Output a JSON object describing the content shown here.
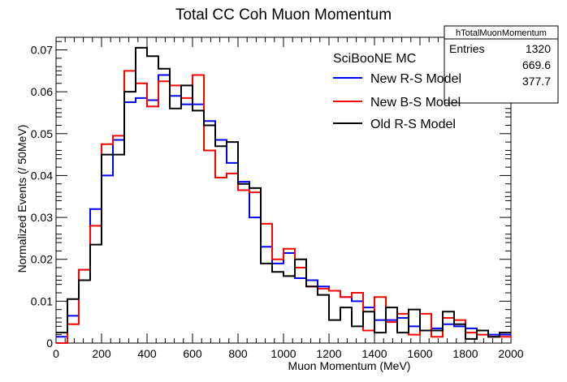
{
  "chart_data": {
    "type": "line",
    "title": "Total CC Coh Muon Momentum",
    "xlabel": "Muon Momentum (MeV)",
    "ylabel": "Normalized Events (/ 50MeV)",
    "xlim": [
      0,
      2000
    ],
    "ylim": [
      0,
      0.073
    ],
    "bin_width": 50,
    "bin_edges_start": 0,
    "x_ticks": [
      0,
      200,
      400,
      600,
      800,
      1000,
      1200,
      1400,
      1600,
      1800,
      2000
    ],
    "x_tick_labels": [
      "0",
      "200",
      "400",
      "600",
      "800",
      "1000",
      "1200",
      "1400",
      "1600",
      "1800",
      "2000"
    ],
    "y_ticks": [
      0,
      0.01,
      0.02,
      0.03,
      0.04,
      0.05,
      0.06,
      0.07
    ],
    "y_tick_labels": [
      "0",
      "0.01",
      "0.02",
      "0.03",
      "0.04",
      "0.05",
      "0.06",
      "0.07"
    ],
    "legend_header": "SciBooNE MC",
    "legend_position": "top-right",
    "grid": false,
    "series": [
      {
        "name": "New R-S Model",
        "color": "#0000ff",
        "values": [
          0.0015,
          0.0065,
          0.0175,
          0.032,
          0.04,
          0.0485,
          0.0575,
          0.0585,
          0.058,
          0.064,
          0.059,
          0.057,
          0.057,
          0.053,
          0.0485,
          0.043,
          0.0385,
          0.03,
          0.023,
          0.019,
          0.0215,
          0.0155,
          0.015,
          0.0135,
          0.0125,
          0.011,
          0.01,
          0.0085,
          0.0055,
          0.0055,
          0.006,
          0.004,
          0.003,
          0.0035,
          0.0045,
          0.004,
          0.0035,
          0.003,
          0.002,
          0.002
        ]
      },
      {
        "name": "New B-S Model",
        "color": "#ff0000",
        "values": [
          0.0,
          0.0045,
          0.0175,
          0.028,
          0.0475,
          0.0495,
          0.065,
          0.062,
          0.0565,
          0.0625,
          0.0615,
          0.0585,
          0.064,
          0.046,
          0.0395,
          0.0405,
          0.0365,
          0.036,
          0.0285,
          0.02,
          0.0225,
          0.018,
          0.0135,
          0.013,
          0.0125,
          0.011,
          0.012,
          0.003,
          0.011,
          0.005,
          0.007,
          0.002,
          0.007,
          0.0015,
          0.006,
          0.0055,
          0.0025,
          0.002,
          0.0015,
          0.0015
        ]
      },
      {
        "name": "Old R-S Model",
        "color": "#000000",
        "values": [
          0.0025,
          0.0105,
          0.015,
          0.0235,
          0.045,
          0.045,
          0.06,
          0.0705,
          0.0685,
          0.0655,
          0.056,
          0.0615,
          0.0555,
          0.052,
          0.047,
          0.048,
          0.038,
          0.037,
          0.019,
          0.017,
          0.016,
          0.02,
          0.0135,
          0.0115,
          0.0055,
          0.0085,
          0.004,
          0.0075,
          0.0025,
          0.0085,
          0.0025,
          0.008,
          0.003,
          0.003,
          0.0075,
          0.0045,
          0.001,
          0.003,
          0.0015,
          0.0025
        ]
      }
    ]
  },
  "stats_box": {
    "title": "hTotalMuonMomentum",
    "rows": [
      {
        "label": "Entries",
        "value": "1320"
      },
      {
        "label": "",
        "value": "669.6"
      },
      {
        "label": "",
        "value": "377.7"
      }
    ]
  }
}
